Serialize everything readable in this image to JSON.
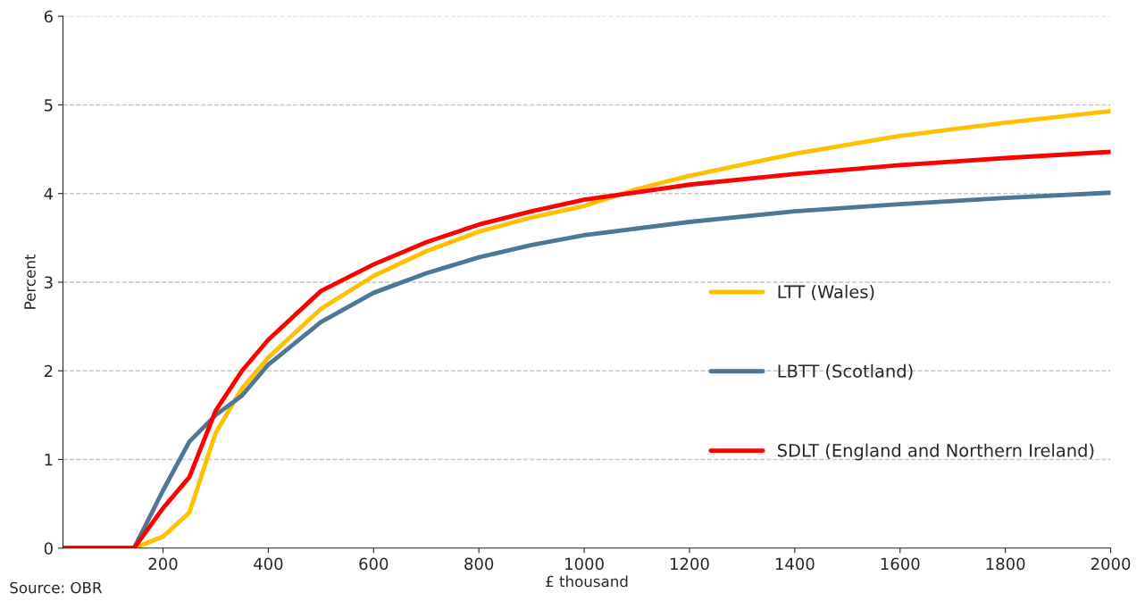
{
  "chart_data": {
    "type": "line",
    "xlabel": "£ thousand",
    "ylabel": "Percent",
    "annotations": [
      "Source: OBR"
    ],
    "xlim": [
      10,
      2000
    ],
    "xticks": [
      200,
      400,
      600,
      800,
      1000,
      1200,
      1400,
      1600,
      1800,
      2000
    ],
    "ylim": [
      0,
      6
    ],
    "yticks": [
      0,
      1,
      2,
      3,
      4,
      5,
      6
    ],
    "grid": "y",
    "legend": "right",
    "marker": "none",
    "line_style": "solid",
    "series": [
      {
        "name": "LTT (Wales)",
        "color": "#ffc000",
        "x": [
          10,
          145,
          200,
          250,
          300,
          350,
          400,
          500,
          600,
          700,
          800,
          900,
          1000,
          1100,
          1200,
          1400,
          1600,
          1800,
          2000
        ],
        "values": [
          0,
          0,
          0.13,
          0.4,
          1.3,
          1.8,
          2.15,
          2.7,
          3.07,
          3.35,
          3.57,
          3.73,
          3.86,
          4.05,
          4.2,
          4.45,
          4.65,
          4.8,
          4.93
        ]
      },
      {
        "name": "LBTT (Scotland)",
        "color": "#4d7794",
        "x": [
          10,
          145,
          200,
          250,
          300,
          350,
          400,
          500,
          600,
          700,
          800,
          900,
          1000,
          1200,
          1400,
          1600,
          1800,
          2000
        ],
        "values": [
          0,
          0,
          0.65,
          1.2,
          1.5,
          1.72,
          2.07,
          2.55,
          2.88,
          3.1,
          3.28,
          3.42,
          3.53,
          3.68,
          3.8,
          3.88,
          3.95,
          4.01
        ]
      },
      {
        "name": "SDLT (England and Northern Ireland)",
        "color": "#ff0000",
        "x": [
          10,
          145,
          200,
          250,
          300,
          350,
          400,
          500,
          600,
          700,
          800,
          900,
          1000,
          1200,
          1400,
          1600,
          1800,
          2000
        ],
        "values": [
          0,
          0,
          0.45,
          0.8,
          1.55,
          2.0,
          2.35,
          2.9,
          3.2,
          3.45,
          3.65,
          3.8,
          3.93,
          4.1,
          4.22,
          4.32,
          4.4,
          4.47
        ]
      }
    ]
  }
}
